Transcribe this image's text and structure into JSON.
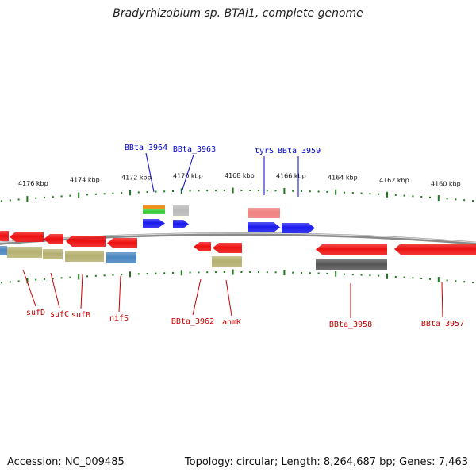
{
  "title": "Bradyrhizobium sp. BTAi1, complete genome",
  "footer": {
    "accession": "Accession: NC_009485",
    "topology": "Topology: circular; Length: 8,264,687 bp; Genes: 7,463"
  },
  "colors": {
    "backbone": "#8a8a8a",
    "tick": "#1c7a1c",
    "gene_red": "#ee1111",
    "gene_blue": "#1a1aee",
    "gene_olive": "#b5b070",
    "gene_steel": "#4a86c0",
    "gene_dark": "#555555",
    "gene_pink": "#ef8080",
    "gene_gray": "#b9b9b9",
    "gene_orange": "#ef8c10",
    "gene_green": "#33cc33",
    "label_blue": "#0000cc",
    "label_red": "#cc0000"
  },
  "scale_labels": [
    {
      "id": "kbp-4176",
      "text": "4176 kbp"
    },
    {
      "id": "kbp-4174",
      "text": "4174 kbp"
    },
    {
      "id": "kbp-4172",
      "text": "4172 kbp"
    },
    {
      "id": "kbp-4170",
      "text": "4170 kbp"
    },
    {
      "id": "kbp-4168",
      "text": "4168 kbp"
    },
    {
      "id": "kbp-4166",
      "text": "4166 kbp"
    },
    {
      "id": "kbp-4164",
      "text": "4164 kbp"
    },
    {
      "id": "kbp-4162",
      "text": "4162 kbp"
    },
    {
      "id": "kbp-4160",
      "text": "4160 kbp"
    }
  ],
  "gene_labels": [
    {
      "id": "bbta-3964",
      "text": "BBta_3964"
    },
    {
      "id": "bbta-3963",
      "text": "BBta_3963"
    },
    {
      "id": "tyrs",
      "text": "tyrS"
    },
    {
      "id": "bbta-3959",
      "text": "BBta_3959"
    },
    {
      "id": "sufd",
      "text": "sufD"
    },
    {
      "id": "sufc",
      "text": "sufC"
    },
    {
      "id": "sufb",
      "text": "sufB"
    },
    {
      "id": "nifs",
      "text": "nifS"
    },
    {
      "id": "bbta-3962",
      "text": "BBta_3962"
    },
    {
      "id": "anmk",
      "text": "anmK"
    },
    {
      "id": "bbta-3958",
      "text": "BBta_3958"
    },
    {
      "id": "bbta-3957",
      "text": "BBta_3957"
    }
  ]
}
